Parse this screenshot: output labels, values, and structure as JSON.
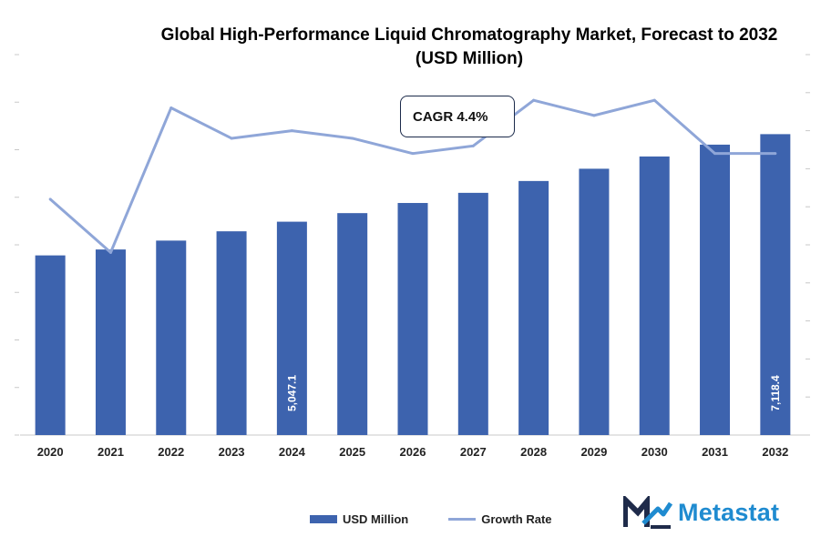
{
  "chart_data": {
    "type": "bar",
    "title": "Global High-Performance Liquid Chromatography Market, Forecast to 2032",
    "subtitle": "(USD Million)",
    "categories": [
      "2020",
      "2021",
      "2022",
      "2023",
      "2024",
      "2025",
      "2026",
      "2027",
      "2028",
      "2029",
      "2030",
      "2031",
      "2032"
    ],
    "series": [
      {
        "name": "USD Million",
        "kind": "bar",
        "axis": "left",
        "values": [
          4250,
          4390,
          4600,
          4820,
          5047.1,
          5250,
          5490,
          5730,
          6010,
          6300,
          6590,
          6870,
          7118.4
        ]
      },
      {
        "name": "Growth Rate",
        "kind": "line",
        "axis": "right",
        "values": [
          3.1,
          2.4,
          4.3,
          3.9,
          4.0,
          3.9,
          3.7,
          3.8,
          4.4,
          4.2,
          4.4,
          3.7,
          3.7
        ]
      }
    ],
    "data_labels": [
      {
        "category": "2024",
        "text": "5,047.1"
      },
      {
        "category": "2032",
        "text": "7,118.4"
      }
    ],
    "ylim_left": [
      0,
      9000
    ],
    "ylim_right": [
      0,
      5
    ],
    "annotation": "CAGR 4.4%",
    "legend_position": "bottom",
    "colors": {
      "bar": "#3d63ae",
      "line": "#8fa6d8",
      "axis": "#c8c8c8"
    }
  },
  "brand": {
    "name": "Metastat",
    "text_color": "#1f8bd0",
    "mark_color": "#1f2b4a"
  }
}
